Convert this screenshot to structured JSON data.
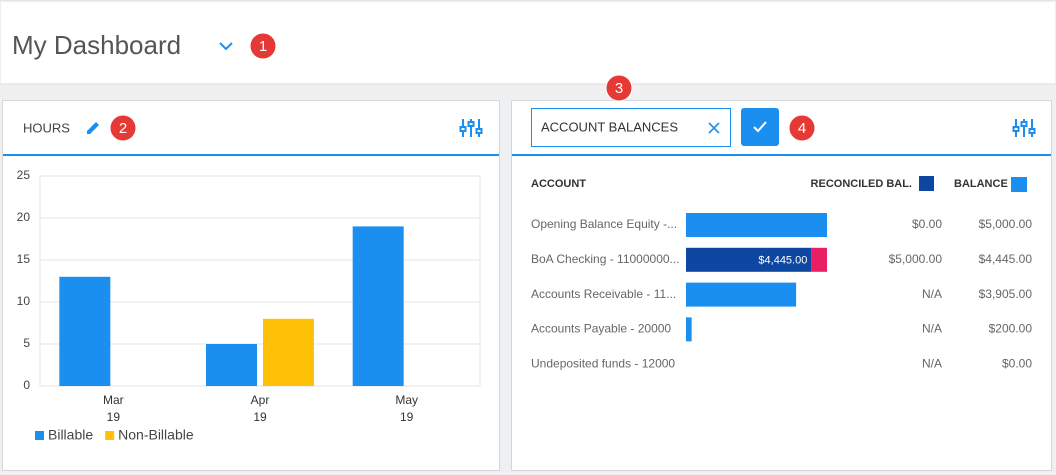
{
  "header": {
    "title": "My Dashboard"
  },
  "callouts": [
    "1",
    "2",
    "3",
    "4"
  ],
  "hours": {
    "title": "HOURS",
    "chart": {
      "type": "bar",
      "categories": [
        "Mar",
        "Apr",
        "May"
      ],
      "category_sublabels": [
        "19",
        "19",
        "19"
      ],
      "series": [
        {
          "name": "Billable",
          "color": "#1a8ff0",
          "values": [
            13,
            5,
            19
          ]
        },
        {
          "name": "Non-Billable",
          "color": "#ffc107",
          "values": [
            0,
            8,
            0
          ]
        }
      ],
      "ylim": [
        0,
        25
      ],
      "yticks": [
        0,
        5,
        10,
        15,
        20,
        25
      ],
      "grid": true,
      "legend": "bottom-left"
    }
  },
  "balances": {
    "title": "ACCOUNT BALANCES",
    "columns": [
      "ACCOUNT",
      "RECONCILED BAL.",
      "BALANCE"
    ],
    "reconciled_color": "#0d47a1",
    "balance_color": "#1a8ff0",
    "excess_color": "#e91e63",
    "bar_xlim": [
      0,
      5000
    ],
    "rows": [
      {
        "account": "Opening Balance Equity -...",
        "reconciled": {
          "value": 0,
          "label": "$0.00"
        },
        "balance": {
          "value": 5000,
          "label": "$5,000.00"
        }
      },
      {
        "account": "BoA Checking - 11000000...",
        "reconciled": {
          "value": 5000,
          "label": "$5,000.00"
        },
        "balance": {
          "value": 4445,
          "label": "$4,445.00"
        }
      },
      {
        "account": "Accounts Receivable - 11...",
        "reconciled": "N/A",
        "balance": {
          "value": 3905,
          "label": "$3,905.00"
        }
      },
      {
        "account": "Accounts Payable - 20000",
        "reconciled": "N/A",
        "balance": {
          "value": 200,
          "label": "$200.00"
        }
      },
      {
        "account": "Undeposited funds - 12000",
        "reconciled": "N/A",
        "balance": {
          "value": 0,
          "label": "$0.00"
        }
      }
    ]
  }
}
